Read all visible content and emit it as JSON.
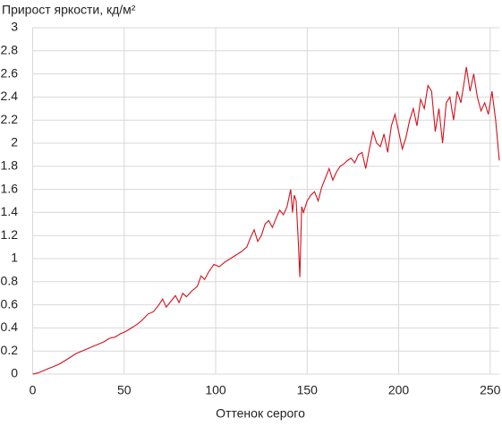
{
  "chart_data": {
    "type": "line",
    "title": "Прирост яркости, кд/м²",
    "x_label": "Оттенок серого",
    "x": [
      0,
      3,
      6,
      9,
      12,
      15,
      18,
      21,
      24,
      27,
      30,
      33,
      36,
      39,
      42,
      45,
      48,
      51,
      54,
      57,
      60,
      63,
      66,
      69,
      71,
      73,
      75,
      78,
      80,
      82,
      84,
      87,
      90,
      92,
      94,
      96,
      99,
      102,
      105,
      108,
      111,
      114,
      117,
      119,
      121,
      123,
      125,
      127,
      129,
      131,
      133,
      135,
      137,
      139,
      141,
      142,
      143,
      144,
      145,
      146,
      147,
      148,
      150,
      152,
      154,
      156,
      158,
      160,
      162,
      164,
      166,
      168,
      170,
      172,
      174,
      176,
      178,
      180,
      182,
      184,
      186,
      188,
      190,
      192,
      194,
      196,
      198,
      200,
      202,
      204,
      206,
      208,
      210,
      212,
      214,
      216,
      218,
      220,
      222,
      224,
      226,
      228,
      230,
      232,
      234,
      236,
      237,
      239,
      241,
      243,
      245,
      247,
      249,
      251,
      253,
      255
    ],
    "series": [
      {
        "name": "Прирост яркости",
        "color": "#d4121c",
        "values": [
          0,
          0.01,
          0.03,
          0.05,
          0.07,
          0.09,
          0.12,
          0.15,
          0.18,
          0.2,
          0.22,
          0.24,
          0.26,
          0.28,
          0.31,
          0.32,
          0.35,
          0.37,
          0.4,
          0.43,
          0.47,
          0.52,
          0.54,
          0.6,
          0.65,
          0.58,
          0.62,
          0.68,
          0.62,
          0.7,
          0.67,
          0.72,
          0.76,
          0.85,
          0.82,
          0.88,
          0.95,
          0.93,
          0.97,
          1.0,
          1.03,
          1.06,
          1.1,
          1.18,
          1.25,
          1.15,
          1.2,
          1.3,
          1.33,
          1.27,
          1.35,
          1.42,
          1.38,
          1.45,
          1.6,
          1.4,
          1.55,
          1.5,
          1.2,
          0.84,
          1.45,
          1.4,
          1.5,
          1.55,
          1.58,
          1.5,
          1.62,
          1.7,
          1.78,
          1.68,
          1.75,
          1.8,
          1.82,
          1.85,
          1.87,
          1.83,
          1.9,
          1.92,
          1.78,
          1.95,
          2.1,
          2.0,
          1.97,
          2.08,
          1.92,
          2.15,
          2.25,
          2.1,
          1.95,
          2.05,
          2.2,
          2.3,
          2.15,
          2.38,
          2.3,
          2.5,
          2.45,
          2.1,
          2.3,
          2.0,
          2.35,
          2.4,
          2.2,
          2.45,
          2.35,
          2.55,
          2.66,
          2.45,
          2.6,
          2.4,
          2.28,
          2.35,
          2.25,
          2.45,
          2.2,
          1.85
        ]
      }
    ],
    "xlim": [
      0,
      255
    ],
    "xticks": [
      0,
      50,
      100,
      150,
      200,
      250
    ],
    "ylim": [
      0,
      3
    ],
    "yticks": [
      0,
      0.2,
      0.4,
      0.6,
      0.8,
      1,
      1.2,
      1.4,
      1.6,
      1.8,
      2,
      2.2,
      2.4,
      2.6,
      2.8,
      3
    ],
    "grid": true
  }
}
